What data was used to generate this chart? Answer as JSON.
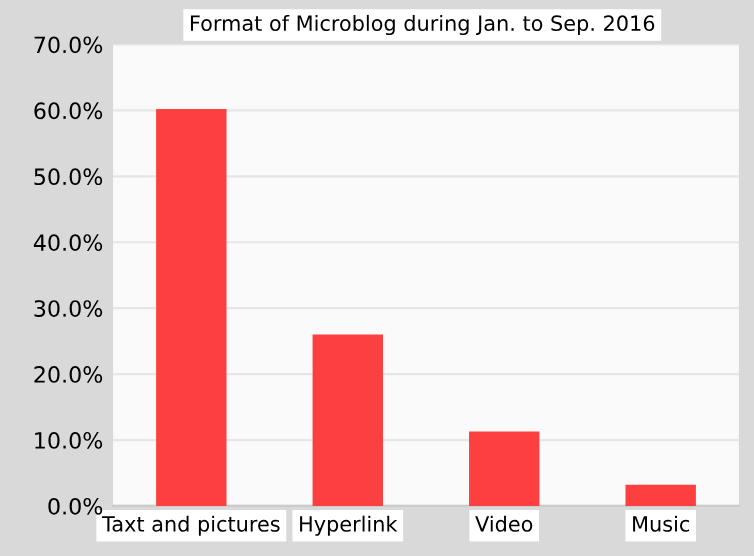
{
  "chart_data": {
    "type": "bar",
    "title": "Format of Microblog during Jan. to Sep. 2016",
    "categories": [
      "Taxt and pictures",
      "Hyperlink",
      "Video",
      "Music"
    ],
    "values": [
      60.2,
      26.0,
      11.3,
      3.2
    ],
    "color": "#fc4040",
    "ylim": [
      0,
      70
    ],
    "yticks": [
      {
        "value": 0,
        "label": "0.0%"
      },
      {
        "value": 10,
        "label": "10.0%"
      },
      {
        "value": 20,
        "label": "20.0%"
      },
      {
        "value": 30,
        "label": "30.0%"
      },
      {
        "value": 40,
        "label": "40.0%"
      },
      {
        "value": 50,
        "label": "50.0%"
      },
      {
        "value": 60,
        "label": "60.0%"
      },
      {
        "value": 70,
        "label": "70.0%"
      }
    ],
    "grid": "y"
  }
}
